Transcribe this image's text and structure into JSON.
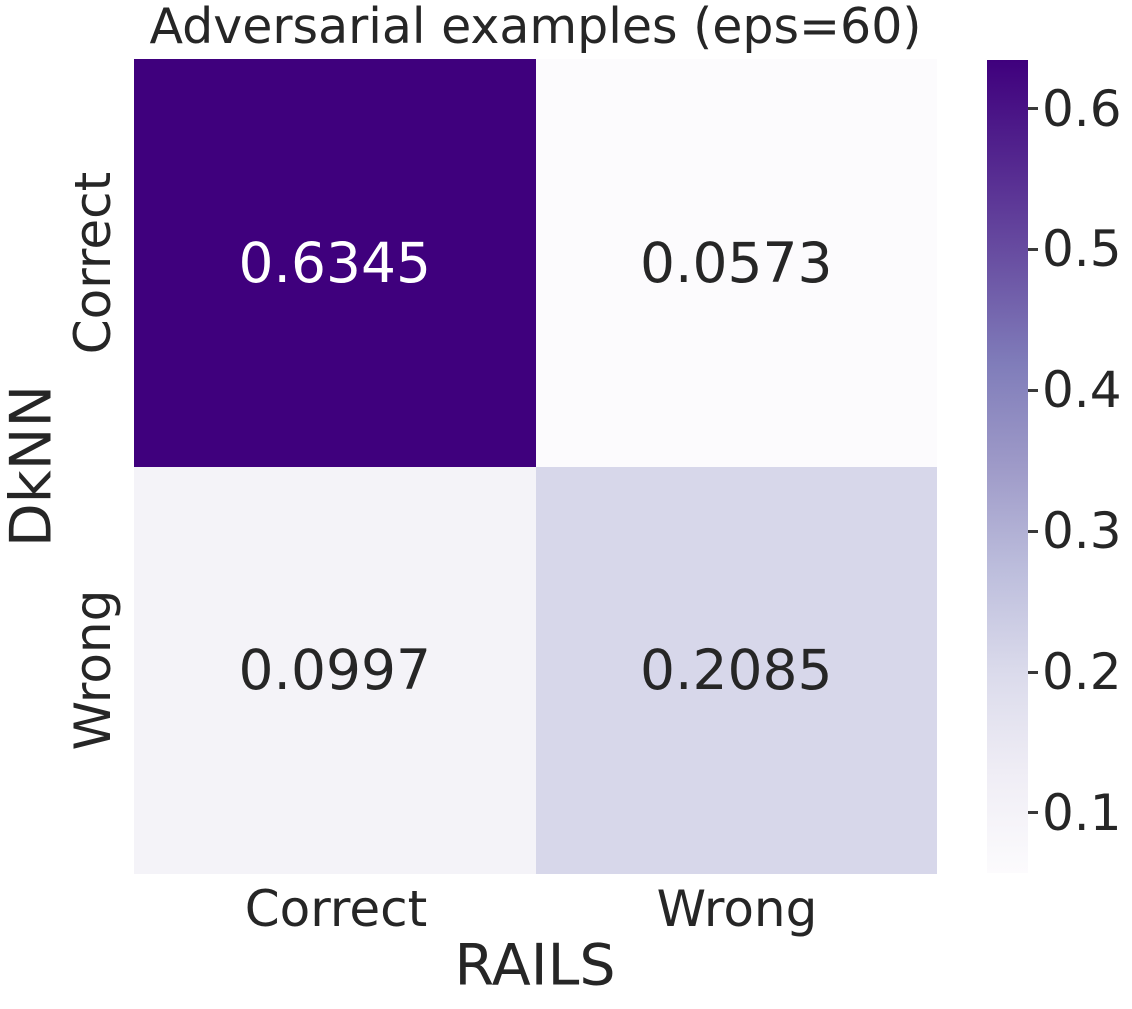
{
  "chart_data": {
    "type": "heatmap",
    "title": "Adversarial examples (eps=60)",
    "xlabel": "RAILS",
    "ylabel": "DkNN",
    "x_categories": [
      "Correct",
      "Wrong"
    ],
    "y_categories": [
      "Correct",
      "Wrong"
    ],
    "rows": [
      {
        "y": "Correct",
        "values": [
          0.6345,
          0.0573
        ]
      },
      {
        "y": "Wrong",
        "values": [
          0.0997,
          0.2085
        ]
      }
    ],
    "cell_labels": [
      [
        "0.6345",
        "0.0573"
      ],
      [
        "0.0997",
        "0.2085"
      ]
    ],
    "vmin": 0.0573,
    "vmax": 0.6345,
    "colormap": "Purples",
    "colorbar_ticks": [
      0.6,
      0.5,
      0.4,
      0.3,
      0.2,
      0.1
    ],
    "colorbar_tick_labels": [
      "0.6",
      "0.5",
      "0.4",
      "0.3",
      "0.2",
      "0.1"
    ],
    "legend_position": "right-colorbar",
    "grid": false
  },
  "colors": {
    "background": "#ffffff",
    "text": "#262626",
    "annotation_light": "#ffffff",
    "annotation_dark": "#262626",
    "tick_mark": "#3a3a3a",
    "purples_scale": [
      "#fcfbfd",
      "#efedf5",
      "#dadaeb",
      "#bcbddc",
      "#9e9ac8",
      "#807dba",
      "#6a51a3",
      "#54278f",
      "#3f007d"
    ]
  }
}
